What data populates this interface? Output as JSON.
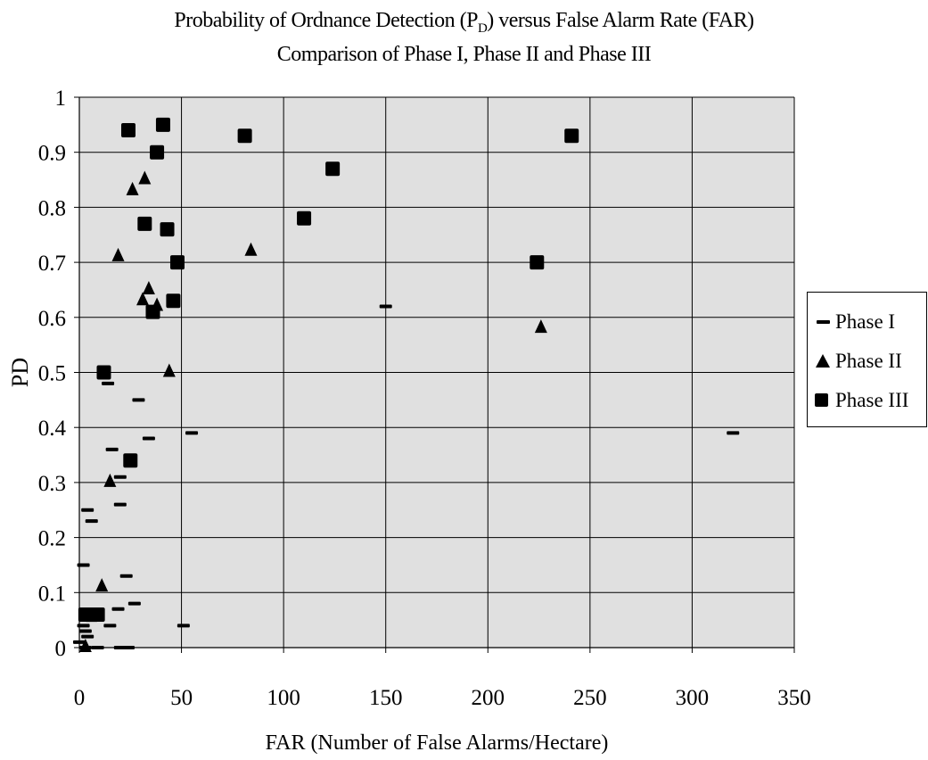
{
  "title_line1_pre": "Probability of Ordnance Detection (P",
  "title_line1_sub": "D",
  "title_line1_post": ") versus False Alarm Rate (FAR)",
  "title_line2": "Comparison of Phase I, Phase II and  Phase III",
  "chart_data": {
    "type": "scatter",
    "xlabel": "FAR (Number of False Alarms/Hectare)",
    "ylabel": "PD",
    "xlim": [
      0,
      350
    ],
    "ylim": [
      0,
      1
    ],
    "xticks": [
      0,
      50,
      100,
      150,
      200,
      250,
      300,
      350
    ],
    "yticks": [
      0,
      0.1,
      0.2,
      0.3,
      0.4,
      0.5,
      0.6,
      0.7,
      0.8,
      0.9,
      1
    ],
    "grid": true,
    "legend_position": "right",
    "background_color": "#e0e0e0",
    "marker_color": "#000000",
    "series": [
      {
        "name": "Phase I",
        "marker": "dash",
        "points": [
          [
            150,
            0.62
          ],
          [
            320,
            0.39
          ],
          [
            55,
            0.39
          ],
          [
            14,
            0.48
          ],
          [
            29,
            0.45
          ],
          [
            34,
            0.38
          ],
          [
            16,
            0.36
          ],
          [
            20,
            0.31
          ],
          [
            20,
            0.26
          ],
          [
            4,
            0.25
          ],
          [
            6,
            0.23
          ],
          [
            2,
            0.15
          ],
          [
            23,
            0.13
          ],
          [
            27,
            0.08
          ],
          [
            19,
            0.07
          ],
          [
            3,
            0.06
          ],
          [
            6,
            0.05
          ],
          [
            2,
            0.04
          ],
          [
            15,
            0.04
          ],
          [
            51,
            0.04
          ],
          [
            3,
            0.03
          ],
          [
            4,
            0.02
          ],
          [
            0,
            0.01
          ],
          [
            3,
            0.0
          ],
          [
            9,
            0.0
          ],
          [
            20,
            0.0
          ],
          [
            24,
            0.0
          ]
        ]
      },
      {
        "name": "Phase II",
        "marker": "triangle",
        "points": [
          [
            32,
            0.85
          ],
          [
            26,
            0.83
          ],
          [
            19,
            0.71
          ],
          [
            84,
            0.72
          ],
          [
            34,
            0.65
          ],
          [
            31,
            0.63
          ],
          [
            38,
            0.62
          ],
          [
            226,
            0.58
          ],
          [
            44,
            0.5
          ],
          [
            15,
            0.3
          ],
          [
            11,
            0.11
          ],
          [
            3,
            0.0
          ]
        ]
      },
      {
        "name": "Phase III",
        "marker": "square",
        "points": [
          [
            41,
            0.95
          ],
          [
            24,
            0.94
          ],
          [
            81,
            0.93
          ],
          [
            241,
            0.93
          ],
          [
            38,
            0.9
          ],
          [
            124,
            0.87
          ],
          [
            110,
            0.78
          ],
          [
            32,
            0.77
          ],
          [
            43,
            0.76
          ],
          [
            48,
            0.7
          ],
          [
            224,
            0.7
          ],
          [
            46,
            0.63
          ],
          [
            36,
            0.61
          ],
          [
            12,
            0.5
          ],
          [
            25,
            0.34
          ],
          [
            3,
            0.06
          ],
          [
            6,
            0.06
          ],
          [
            9,
            0.06
          ]
        ]
      }
    ]
  }
}
